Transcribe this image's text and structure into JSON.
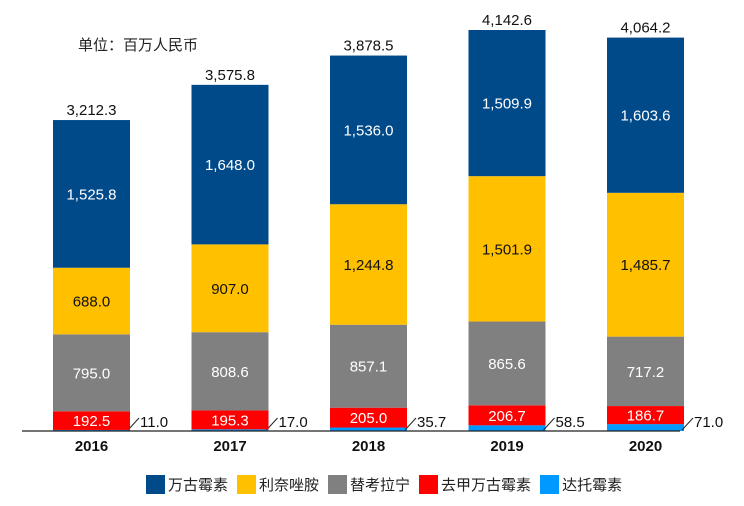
{
  "chart_data": {
    "type": "bar",
    "stacked": true,
    "title": "",
    "unit_label": "单位：百万人民币",
    "xlabel": "",
    "ylabel": "",
    "categories": [
      "2016",
      "2017",
      "2018",
      "2019",
      "2020"
    ],
    "series": [
      {
        "name": "达托霉素",
        "color": "#0099FF",
        "values": [
          11.0,
          17.0,
          35.7,
          58.5,
          71.0
        ],
        "labels": [
          "11.0",
          "17.0",
          "35.7",
          "58.5",
          "71.0"
        ],
        "label_position": "outside-right"
      },
      {
        "name": "去甲万古霉素",
        "color": "#FF0000",
        "values": [
          192.5,
          195.3,
          205.0,
          206.7,
          186.7
        ],
        "labels": [
          "192.5",
          "195.3",
          "205.0",
          "206.7",
          "186.7"
        ],
        "label_color": "#FFFFFF"
      },
      {
        "name": "替考拉宁",
        "color": "#808080",
        "values": [
          795.0,
          808.6,
          857.1,
          865.6,
          717.2
        ],
        "labels": [
          "795.0",
          "808.6",
          "857.1",
          "865.6",
          "717.2"
        ],
        "label_color": "#FFFFFF"
      },
      {
        "name": "利奈唑胺",
        "color": "#FFC000",
        "values": [
          688.0,
          907.0,
          1244.8,
          1501.9,
          1485.7
        ],
        "labels": [
          "688.0",
          "907.0",
          "1,244.8",
          "1,501.9",
          "1,485.7"
        ],
        "label_color": "#111111"
      },
      {
        "name": "万古霉素",
        "color": "#004A8A",
        "values": [
          1525.8,
          1648.0,
          1536.0,
          1509.9,
          1603.6
        ],
        "labels": [
          "1,525.8",
          "1,648.0",
          "1,536.0",
          "1,509.9",
          "1,603.6"
        ],
        "label_color": "#FFFFFF"
      }
    ],
    "totals": [
      3212.3,
      3575.8,
      3878.5,
      4142.6,
      4064.2
    ],
    "total_labels": [
      "3,212.3",
      "3,575.8",
      "3,878.5",
      "4,142.6",
      "4,064.2"
    ],
    "legend": {
      "position": "bottom",
      "entries": [
        "万古霉素",
        "利奈唑胺",
        "替考拉宁",
        "去甲万古霉素",
        "达托霉素"
      ]
    },
    "ylim": [
      0,
      4142.6
    ],
    "grid": false
  }
}
